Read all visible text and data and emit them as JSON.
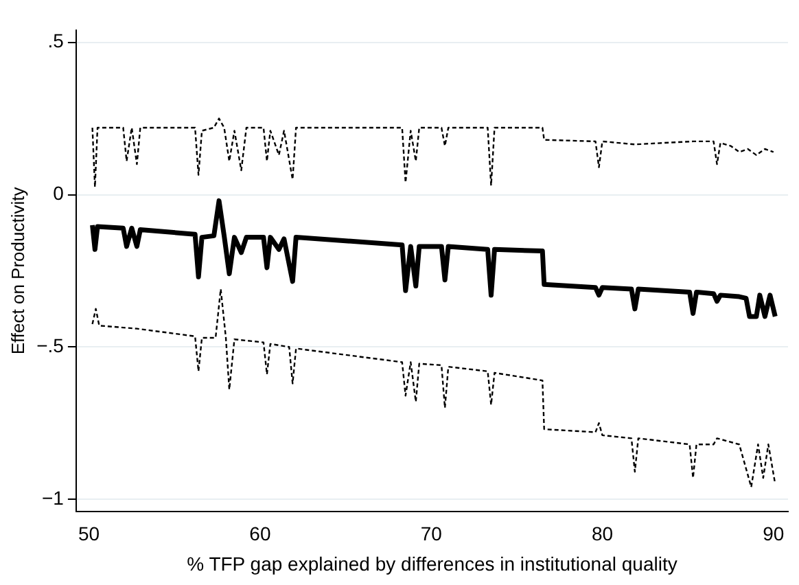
{
  "chart_data": {
    "type": "line",
    "xlabel": "% TFP gap explained by differences in institutional quality",
    "ylabel": "Effect on Productivity",
    "xlim": [
      49.25,
      90.85
    ],
    "ylim": [
      -1.04,
      0.54
    ],
    "xticks": [
      50,
      60,
      70,
      80,
      90
    ],
    "yticks": [
      {
        "value": -1,
        "label": "−1"
      },
      {
        "value": -0.5,
        "label": "−.5"
      },
      {
        "value": 0,
        "label": "0"
      },
      {
        "value": 0.5,
        "label": ".5"
      }
    ],
    "grid": "y",
    "legend": false,
    "marker": "none",
    "series": [
      {
        "color": "#000000",
        "line_style": "dashed",
        "x": [
          50.2,
          50.35,
          50.5,
          52.0,
          52.2,
          52.5,
          52.8,
          53.0,
          56.2,
          56.4,
          56.6,
          57.3,
          57.6,
          57.9,
          58.2,
          58.5,
          58.9,
          59.2,
          60.2,
          60.4,
          60.6,
          61.1,
          61.4,
          61.9,
          62.1,
          68.3,
          68.5,
          68.8,
          69.1,
          69.3,
          70.6,
          70.8,
          71.0,
          73.3,
          73.5,
          73.7,
          76.5,
          76.6,
          79.6,
          79.8,
          80.0,
          81.9,
          85.3,
          86.5,
          86.7,
          86.9,
          87.5,
          88.0,
          88.5,
          89.0,
          89.5,
          90.0
        ],
        "values": [
          0.22,
          0.025,
          0.22,
          0.22,
          0.11,
          0.22,
          0.1,
          0.22,
          0.22,
          0.065,
          0.21,
          0.22,
          0.25,
          0.22,
          0.11,
          0.21,
          0.08,
          0.22,
          0.22,
          0.11,
          0.21,
          0.13,
          0.21,
          0.05,
          0.22,
          0.22,
          0.04,
          0.21,
          0.11,
          0.22,
          0.22,
          0.16,
          0.22,
          0.22,
          0.03,
          0.22,
          0.22,
          0.18,
          0.175,
          0.09,
          0.175,
          0.165,
          0.175,
          0.175,
          0.1,
          0.17,
          0.16,
          0.14,
          0.15,
          0.13,
          0.15,
          0.14
        ]
      },
      {
        "color": "#000000",
        "line_style": "solid",
        "x": [
          50.2,
          50.35,
          50.5,
          52.0,
          52.2,
          52.5,
          52.8,
          53.0,
          56.2,
          56.4,
          56.6,
          57.3,
          57.6,
          57.9,
          58.2,
          58.5,
          58.9,
          59.2,
          60.2,
          60.4,
          60.6,
          61.1,
          61.4,
          61.9,
          62.1,
          68.3,
          68.5,
          68.8,
          69.1,
          69.3,
          70.6,
          70.8,
          71.0,
          73.3,
          73.5,
          73.7,
          76.5,
          76.6,
          79.6,
          79.8,
          80.0,
          81.7,
          81.9,
          82.1,
          85.1,
          85.3,
          85.5,
          86.5,
          86.7,
          86.9,
          88.0,
          88.4,
          88.6,
          89.0,
          89.2,
          89.5,
          89.8,
          90.1
        ],
        "values": [
          -0.1,
          -0.18,
          -0.105,
          -0.11,
          -0.17,
          -0.11,
          -0.17,
          -0.115,
          -0.13,
          -0.27,
          -0.14,
          -0.135,
          -0.02,
          -0.135,
          -0.26,
          -0.14,
          -0.19,
          -0.14,
          -0.14,
          -0.24,
          -0.14,
          -0.18,
          -0.145,
          -0.285,
          -0.14,
          -0.165,
          -0.315,
          -0.17,
          -0.3,
          -0.17,
          -0.17,
          -0.28,
          -0.17,
          -0.18,
          -0.33,
          -0.18,
          -0.185,
          -0.295,
          -0.305,
          -0.33,
          -0.305,
          -0.31,
          -0.375,
          -0.31,
          -0.32,
          -0.39,
          -0.32,
          -0.325,
          -0.35,
          -0.33,
          -0.335,
          -0.34,
          -0.4,
          -0.4,
          -0.33,
          -0.4,
          -0.33,
          -0.4
        ]
      },
      {
        "color": "#000000",
        "line_style": "dashed",
        "x": [
          50.2,
          50.4,
          50.6,
          52.8,
          56.2,
          56.4,
          56.6,
          57.4,
          57.7,
          58.0,
          58.2,
          58.5,
          60.2,
          60.4,
          60.6,
          61.7,
          61.9,
          62.1,
          68.3,
          68.5,
          68.8,
          69.1,
          69.3,
          70.6,
          70.8,
          71.0,
          73.3,
          73.5,
          73.7,
          76.5,
          76.6,
          79.6,
          79.8,
          80.0,
          81.7,
          81.9,
          82.1,
          85.1,
          85.3,
          85.5,
          86.5,
          86.7,
          88.0,
          88.7,
          89.1,
          89.4,
          89.7,
          90.1
        ],
        "values": [
          -0.425,
          -0.375,
          -0.43,
          -0.44,
          -0.465,
          -0.58,
          -0.47,
          -0.47,
          -0.31,
          -0.47,
          -0.64,
          -0.475,
          -0.485,
          -0.59,
          -0.49,
          -0.5,
          -0.62,
          -0.505,
          -0.55,
          -0.66,
          -0.55,
          -0.68,
          -0.555,
          -0.56,
          -0.7,
          -0.565,
          -0.58,
          -0.69,
          -0.585,
          -0.61,
          -0.77,
          -0.78,
          -0.75,
          -0.79,
          -0.8,
          -0.91,
          -0.8,
          -0.82,
          -0.93,
          -0.82,
          -0.82,
          -0.8,
          -0.82,
          -0.96,
          -0.82,
          -0.93,
          -0.82,
          -0.95
        ]
      }
    ]
  }
}
